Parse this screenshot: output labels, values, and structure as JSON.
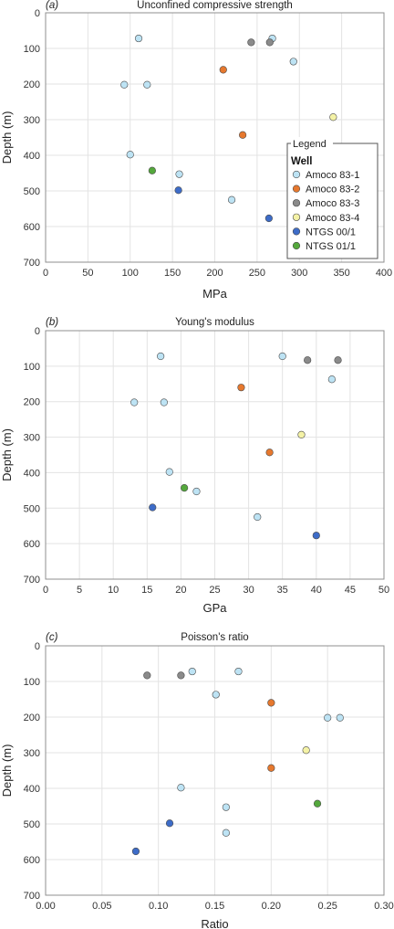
{
  "legend": {
    "title": "Legend",
    "subtitle": "Well",
    "placement": "right-middle of panel (a)"
  },
  "wells": [
    {
      "name": "Amoco 83-1",
      "color": "#bde3f4"
    },
    {
      "name": "Amoco 83-2",
      "color": "#e6782e"
    },
    {
      "name": "Amoco 83-3",
      "color": "#8a8a8a"
    },
    {
      "name": "Amoco 83-4",
      "color": "#f4f2a6"
    },
    {
      "name": "NTGS 00/1",
      "color": "#3d6cc8"
    },
    {
      "name": "NTGS 01/1",
      "color": "#54a83c"
    }
  ],
  "chart_data": [
    {
      "type": "scatter",
      "panel_label": "(a)",
      "title": "Unconfined compressive strength",
      "xlabel": "MPa",
      "ylabel": "Depth (m)",
      "xlim": [
        0,
        400
      ],
      "ylim": [
        0,
        700
      ],
      "y_inverted": true,
      "grid": true,
      "xticks": [
        "0",
        "50",
        "100",
        "150",
        "200",
        "250",
        "300",
        "350",
        "400"
      ],
      "yticks": [
        "0",
        "100",
        "200",
        "300",
        "400",
        "500",
        "600",
        "700"
      ],
      "series": [
        {
          "name": "Amoco 83-1",
          "points": [
            [
              110,
              72
            ],
            [
              268,
              72
            ],
            [
              293,
              137
            ],
            [
              93,
              202
            ],
            [
              120,
              202
            ],
            [
              100,
              398
            ],
            [
              158,
              453
            ],
            [
              220,
              525
            ]
          ]
        },
        {
          "name": "Amoco 83-2",
          "points": [
            [
              210,
              160
            ],
            [
              233,
              343
            ]
          ]
        },
        {
          "name": "Amoco 83-3",
          "points": [
            [
              243,
              83
            ],
            [
              265,
              83
            ]
          ]
        },
        {
          "name": "Amoco 83-4",
          "points": [
            [
              340,
              293
            ]
          ]
        },
        {
          "name": "NTGS 00/1",
          "points": [
            [
              157,
              498
            ],
            [
              264,
              577
            ]
          ]
        },
        {
          "name": "NTGS 01/1",
          "points": [
            [
              126,
              443
            ]
          ]
        }
      ]
    },
    {
      "type": "scatter",
      "panel_label": "(b)",
      "title": "Young's modulus",
      "xlabel": "GPa",
      "ylabel": "Depth (m)",
      "xlim": [
        0,
        50
      ],
      "ylim": [
        0,
        700
      ],
      "y_inverted": true,
      "grid": true,
      "xticks": [
        "0",
        "5",
        "10",
        "15",
        "20",
        "25",
        "30",
        "35",
        "40",
        "45",
        "50"
      ],
      "yticks": [
        "0",
        "100",
        "200",
        "300",
        "400",
        "500",
        "600",
        "700"
      ],
      "series": [
        {
          "name": "Amoco 83-1",
          "points": [
            [
              17,
              72
            ],
            [
              35,
              72
            ],
            [
              42.3,
              137
            ],
            [
              13.1,
              202
            ],
            [
              17.5,
              202
            ],
            [
              18.3,
              398
            ],
            [
              22.3,
              453
            ],
            [
              31.3,
              525
            ]
          ]
        },
        {
          "name": "Amoco 83-2",
          "points": [
            [
              28.9,
              160
            ],
            [
              33.1,
              343
            ]
          ]
        },
        {
          "name": "Amoco 83-3",
          "points": [
            [
              38.7,
              83
            ],
            [
              43.2,
              83
            ]
          ]
        },
        {
          "name": "Amoco 83-4",
          "points": [
            [
              37.8,
              293
            ]
          ]
        },
        {
          "name": "NTGS 00/1",
          "points": [
            [
              15.8,
              498
            ],
            [
              40,
              577
            ]
          ]
        },
        {
          "name": "NTGS 01/1",
          "points": [
            [
              20.5,
              443
            ]
          ]
        }
      ]
    },
    {
      "type": "scatter",
      "panel_label": "(c)",
      "title": "Poisson's ratio",
      "xlabel": "Ratio",
      "ylabel": "Depth (m)",
      "xlim": [
        0,
        0.3
      ],
      "ylim": [
        0,
        700
      ],
      "y_inverted": true,
      "grid": true,
      "xticks": [
        "0.00",
        "0.05",
        "0.10",
        "0.15",
        "0.20",
        "0.25",
        "0.30"
      ],
      "yticks": [
        "0",
        "100",
        "200",
        "300",
        "400",
        "500",
        "600",
        "700"
      ],
      "series": [
        {
          "name": "Amoco 83-1",
          "points": [
            [
              0.13,
              72
            ],
            [
              0.171,
              72
            ],
            [
              0.151,
              137
            ],
            [
              0.25,
              202
            ],
            [
              0.261,
              202
            ],
            [
              0.12,
              398
            ],
            [
              0.16,
              453
            ],
            [
              0.16,
              525
            ]
          ]
        },
        {
          "name": "Amoco 83-2",
          "points": [
            [
              0.2,
              160
            ],
            [
              0.2,
              343
            ]
          ]
        },
        {
          "name": "Amoco 83-3",
          "points": [
            [
              0.09,
              83
            ],
            [
              0.12,
              83
            ]
          ]
        },
        {
          "name": "Amoco 83-4",
          "points": [
            [
              0.231,
              293
            ]
          ]
        },
        {
          "name": "NTGS 00/1",
          "points": [
            [
              0.11,
              498
            ],
            [
              0.08,
              577
            ]
          ]
        },
        {
          "name": "NTGS 01/1",
          "points": [
            [
              0.241,
              443
            ]
          ]
        }
      ]
    }
  ]
}
